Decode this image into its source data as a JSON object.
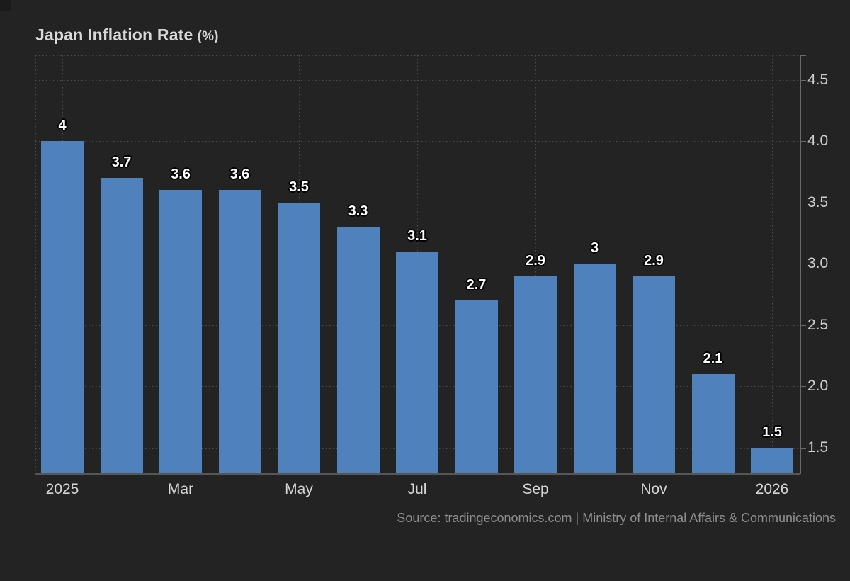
{
  "header": {
    "title": "Japan Inflation Rate",
    "unit": "(%)"
  },
  "chart_data": {
    "type": "bar",
    "title": "Japan Inflation Rate (%)",
    "categories": [
      "2025",
      "",
      "Mar",
      "",
      "May",
      "",
      "Jul",
      "",
      "Sep",
      "",
      "Nov",
      "",
      "2026"
    ],
    "values": [
      4,
      3.7,
      3.6,
      3.6,
      3.5,
      3.3,
      3.1,
      2.7,
      2.9,
      3,
      2.9,
      2.1,
      1.5
    ],
    "bar_labels": [
      "4",
      "3.7",
      "3.6",
      "3.6",
      "3.5",
      "3.3",
      "3.1",
      "2.7",
      "2.9",
      "3",
      "2.9",
      "2.1",
      "1.5"
    ],
    "y_ticks": [
      {
        "value": 1.5,
        "label": "1.5"
      },
      {
        "value": 2.0,
        "label": "2.0"
      },
      {
        "value": 2.5,
        "label": "2.5"
      },
      {
        "value": 3.0,
        "label": "3.0"
      },
      {
        "value": 3.5,
        "label": "3.5"
      },
      {
        "value": 4.0,
        "label": "4.0"
      },
      {
        "value": 4.5,
        "label": "4.5"
      }
    ],
    "ylim": [
      1.285,
      4.7
    ],
    "grid": "dotted",
    "legend": "none",
    "value_axis_side": "right",
    "bar_color": "#4f81bd"
  },
  "footer": {
    "source": "Source: tradingeconomics.com | Ministry of Internal Affairs & Communications"
  }
}
